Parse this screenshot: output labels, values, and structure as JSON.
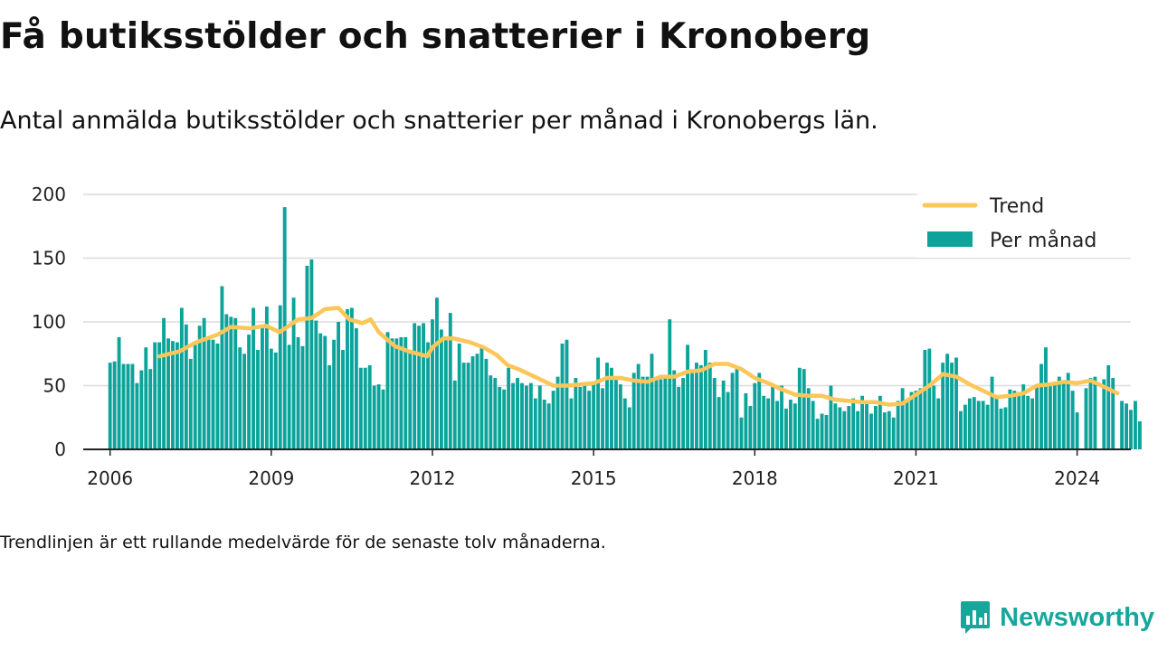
{
  "title": "Få butiksstölder och snatterier i Kronoberg",
  "subtitle": "Antal anmälda butiksstölder och snatterier per månad i Kronobergs län.",
  "note": "Trendlinjen är ett rullande medelvärde för de senaste tolv månaderna.",
  "brand": {
    "name": "Newsworthy",
    "icon": "bar-chart-speech-bubble-icon"
  },
  "colors": {
    "bars": "#0ba39a",
    "trend": "#fcc659",
    "grid": "#dcdcdc",
    "axis": "#222222",
    "brand": "#17a79a"
  },
  "chart_data": {
    "type": "bar",
    "x_start": "2006-01",
    "xlim": [
      2005.5,
      2025.0
    ],
    "ylim": [
      0,
      200
    ],
    "yticks": [
      0,
      50,
      100,
      150,
      200
    ],
    "xticks": [
      2006,
      2009,
      2012,
      2015,
      2018,
      2021,
      2024
    ],
    "grid": true,
    "legend_position": "top-right",
    "legend": {
      "trend": "Trend",
      "bars": "Per månad"
    },
    "series": [
      {
        "name": "Per månad",
        "type": "bar",
        "values": [
          68,
          69,
          88,
          67,
          67,
          67,
          52,
          62,
          80,
          63,
          84,
          84,
          103,
          87,
          85,
          84,
          111,
          98,
          71,
          82,
          97,
          103,
          88,
          86,
          83,
          128,
          106,
          104,
          103,
          80,
          75,
          90,
          111,
          78,
          95,
          112,
          79,
          76,
          113,
          190,
          82,
          119,
          88,
          81,
          144,
          149,
          101,
          91,
          89,
          66,
          86,
          100,
          78,
          110,
          111,
          95,
          64,
          64,
          66,
          50,
          51,
          47,
          92,
          87,
          87,
          88,
          88,
          78,
          99,
          97,
          99,
          84,
          102,
          119,
          94,
          86,
          107,
          54,
          83,
          68,
          68,
          73,
          75,
          80,
          71,
          58,
          56,
          49,
          47,
          64,
          52,
          56,
          52,
          50,
          52,
          40,
          50,
          39,
          36,
          46,
          57,
          83,
          86,
          40,
          56,
          49,
          50,
          46,
          53,
          72,
          48,
          68,
          64,
          55,
          51,
          40,
          33,
          60,
          67,
          57,
          57,
          75,
          55,
          55,
          58,
          102,
          62,
          49,
          56,
          82,
          60,
          68,
          66,
          78,
          68,
          56,
          41,
          54,
          45,
          60,
          63,
          25,
          44,
          34,
          52,
          60,
          42,
          40,
          51,
          38,
          50,
          32,
          39,
          36,
          64,
          63,
          48,
          38,
          24,
          28,
          27,
          50,
          36,
          33,
          30,
          34,
          40,
          30,
          42,
          37,
          28,
          34,
          42,
          29,
          30,
          25,
          38,
          48,
          38,
          45,
          46,
          48,
          78,
          79,
          50,
          40,
          68,
          75,
          68,
          72,
          30,
          35,
          40,
          41,
          38,
          38,
          35,
          57,
          41,
          32,
          33,
          47,
          46,
          45,
          51,
          42,
          40,
          50,
          67,
          80,
          50,
          53,
          57,
          53,
          60,
          46,
          29,
          0,
          48,
          56,
          57,
          0,
          55,
          66,
          56,
          0,
          38,
          36,
          31,
          38,
          22
        ]
      },
      {
        "name": "Trend",
        "type": "line",
        "start": "2006-12",
        "points": [
          [
            2006.92,
            73
          ],
          [
            2007.3,
            77
          ],
          [
            2007.6,
            84
          ],
          [
            2008.0,
            90
          ],
          [
            2008.25,
            96
          ],
          [
            2008.6,
            95
          ],
          [
            2008.9,
            97
          ],
          [
            2009.15,
            92
          ],
          [
            2009.3,
            96
          ],
          [
            2009.5,
            102
          ],
          [
            2009.75,
            103
          ],
          [
            2010.0,
            110
          ],
          [
            2010.25,
            111
          ],
          [
            2010.45,
            102
          ],
          [
            2010.7,
            99
          ],
          [
            2010.85,
            102
          ],
          [
            2011.0,
            92
          ],
          [
            2011.3,
            81
          ],
          [
            2011.55,
            77
          ],
          [
            2011.9,
            73
          ],
          [
            2012.0,
            80
          ],
          [
            2012.2,
            87
          ],
          [
            2012.4,
            87
          ],
          [
            2012.7,
            84
          ],
          [
            2012.95,
            80
          ],
          [
            2013.2,
            74
          ],
          [
            2013.4,
            66
          ],
          [
            2013.6,
            63
          ],
          [
            2013.8,
            59
          ],
          [
            2014.0,
            55
          ],
          [
            2014.25,
            50
          ],
          [
            2014.5,
            50
          ],
          [
            2014.75,
            51
          ],
          [
            2015.0,
            52
          ],
          [
            2015.25,
            56
          ],
          [
            2015.5,
            56
          ],
          [
            2015.75,
            54
          ],
          [
            2016.0,
            53
          ],
          [
            2016.25,
            57
          ],
          [
            2016.5,
            57
          ],
          [
            2016.75,
            61
          ],
          [
            2017.0,
            62
          ],
          [
            2017.25,
            67
          ],
          [
            2017.5,
            67
          ],
          [
            2017.75,
            63
          ],
          [
            2018.0,
            56
          ],
          [
            2018.25,
            52
          ],
          [
            2018.5,
            47
          ],
          [
            2018.75,
            43
          ],
          [
            2019.0,
            42
          ],
          [
            2019.25,
            42
          ],
          [
            2019.5,
            39
          ],
          [
            2019.75,
            38
          ],
          [
            2020.0,
            37
          ],
          [
            2020.25,
            37
          ],
          [
            2020.5,
            35
          ],
          [
            2020.75,
            36
          ],
          [
            2021.0,
            43
          ],
          [
            2021.25,
            50
          ],
          [
            2021.5,
            59
          ],
          [
            2021.75,
            57
          ],
          [
            2022.0,
            51
          ],
          [
            2022.25,
            46
          ],
          [
            2022.5,
            41
          ],
          [
            2022.75,
            42
          ],
          [
            2023.0,
            44
          ],
          [
            2023.25,
            50
          ],
          [
            2023.5,
            51
          ],
          [
            2023.75,
            53
          ],
          [
            2024.0,
            52
          ],
          [
            2024.25,
            54
          ],
          [
            2024.5,
            49
          ],
          [
            2024.75,
            44
          ]
        ]
      }
    ]
  }
}
